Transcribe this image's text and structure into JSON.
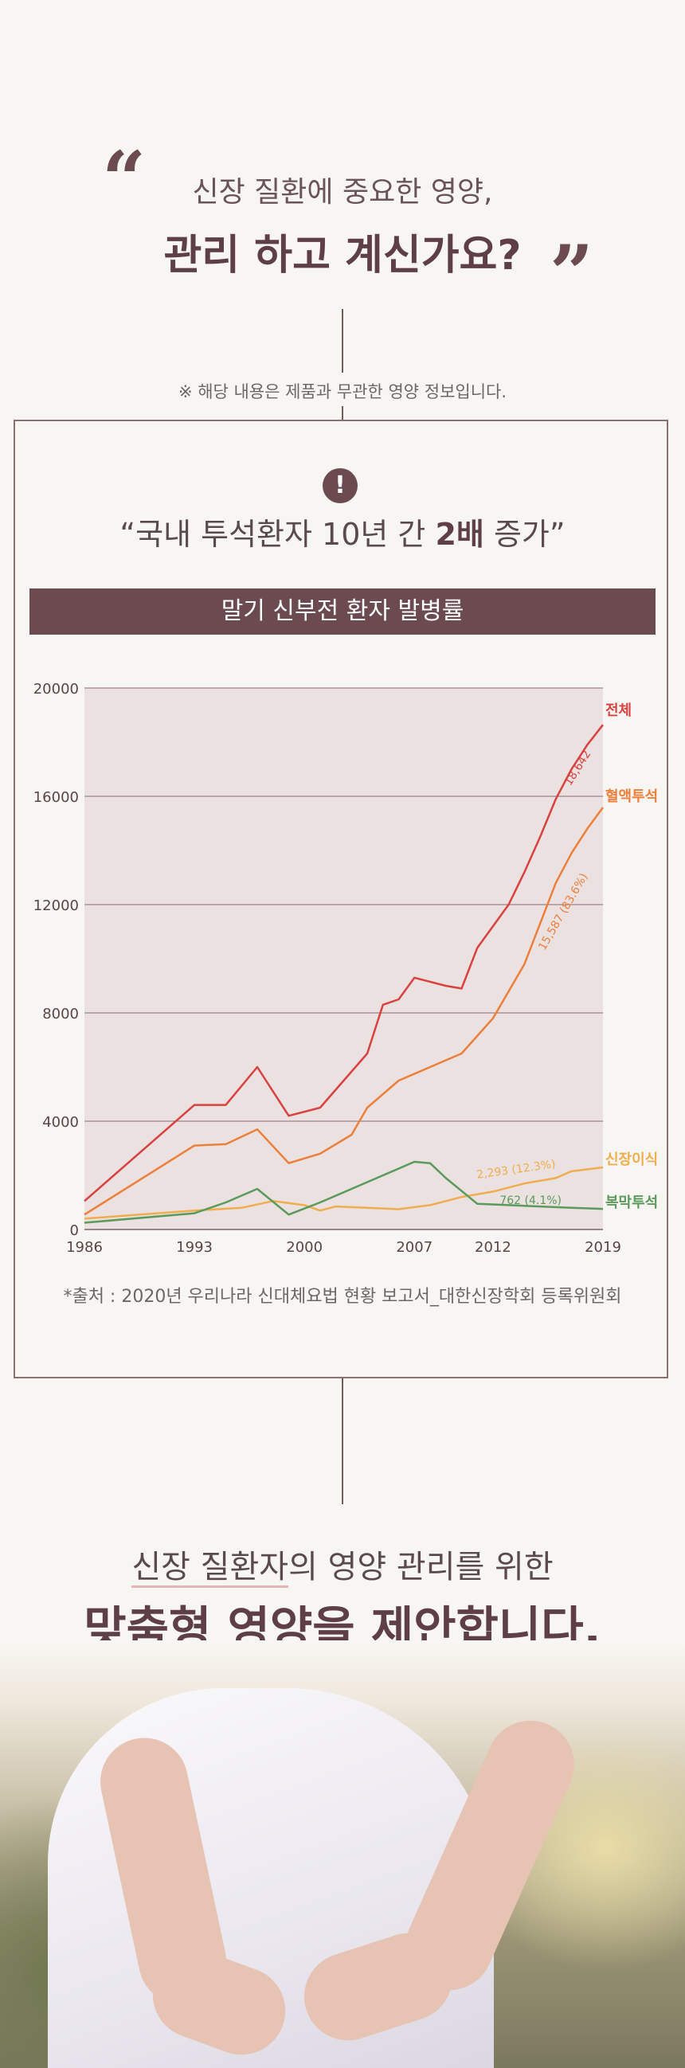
{
  "header": {
    "open_quote": "“",
    "close_quote": "”",
    "line1": "신장 질환에 중요한 영양,",
    "line2": "관리 하고 계신가요?"
  },
  "note": "※ 해당 내용은 제품과 무관한 영양 정보입니다.",
  "box": {
    "alert_icon": "exclamation-icon",
    "alert_glyph": "!",
    "subtitle_pre": "“국내 투석환자 10년 간 ",
    "subtitle_bold": "2배",
    "subtitle_post": " 증가”",
    "banner": "말기 신부전 환자 발병률",
    "source": "*출처 : 2020년 우리나라 신대체요법 현황 보고서_대한신장학회 등록위원회"
  },
  "chart_data": {
    "type": "line",
    "title": "말기 신부전 환자 발병률",
    "xlim": [
      1986,
      2019
    ],
    "ylim": [
      0,
      20000
    ],
    "yticks": [
      "0",
      "4000",
      "8000",
      "12000",
      "16000",
      "20000"
    ],
    "xticks": [
      "1986",
      "1993",
      "2000",
      "2007",
      "2012",
      "2019"
    ],
    "xtick_values": [
      1986,
      1993,
      2000,
      2007,
      2012,
      2019
    ],
    "grid": true,
    "series": [
      {
        "name": "전체",
        "color": "#d9413f",
        "end_label": "18,642",
        "x": [
          1986,
          1993,
          1995,
          1997,
          1999,
          2001,
          2004,
          2005,
          2006,
          2007,
          2009,
          2010,
          2011,
          2013,
          2014,
          2015,
          2016,
          2017,
          2018,
          2019
        ],
        "y": [
          1050,
          4600,
          4600,
          6000,
          4200,
          4500,
          6500,
          8300,
          8500,
          9300,
          9000,
          8900,
          10400,
          12000,
          13200,
          14500,
          15900,
          17000,
          17900,
          18642
        ]
      },
      {
        "name": "혈액투석",
        "color": "#ec7f3a",
        "end_label": "15,587 (83.6%)",
        "x": [
          1986,
          1993,
          1995,
          1997,
          1999,
          2001,
          2003,
          2004,
          2006,
          2008,
          2010,
          2012,
          2014,
          2016,
          2017,
          2018,
          2019
        ],
        "y": [
          550,
          3100,
          3150,
          3700,
          2450,
          2800,
          3500,
          4500,
          5500,
          6000,
          6500,
          7800,
          9800,
          12800,
          13900,
          14800,
          15587
        ]
      },
      {
        "name": "신장이식",
        "color": "#f0ad4e",
        "end_label": "2,293 (12.3%)",
        "x": [
          1986,
          1993,
          1996,
          1998,
          2000,
          2001,
          2002,
          2004,
          2006,
          2008,
          2010,
          2012,
          2014,
          2016,
          2017,
          2019
        ],
        "y": [
          400,
          700,
          800,
          1050,
          900,
          700,
          850,
          800,
          750,
          900,
          1200,
          1400,
          1700,
          1900,
          2150,
          2293
        ]
      },
      {
        "name": "복막투석",
        "color": "#5a9a5a",
        "end_label": "762 (4.1%)",
        "x": [
          1986,
          1993,
          1995,
          1997,
          1999,
          2001,
          2003,
          2005,
          2007,
          2008,
          2009,
          2011,
          2013,
          2015,
          2017,
          2019
        ],
        "y": [
          250,
          600,
          1000,
          1500,
          550,
          1000,
          1500,
          2000,
          2500,
          2450,
          1900,
          950,
          900,
          850,
          800,
          762
        ]
      }
    ]
  },
  "bottom": {
    "line1_underlined": "신장 질환자",
    "line1_rest": "의 영양 관리를 위한",
    "line2": "맞춤형 영양을 제안합니다."
  }
}
